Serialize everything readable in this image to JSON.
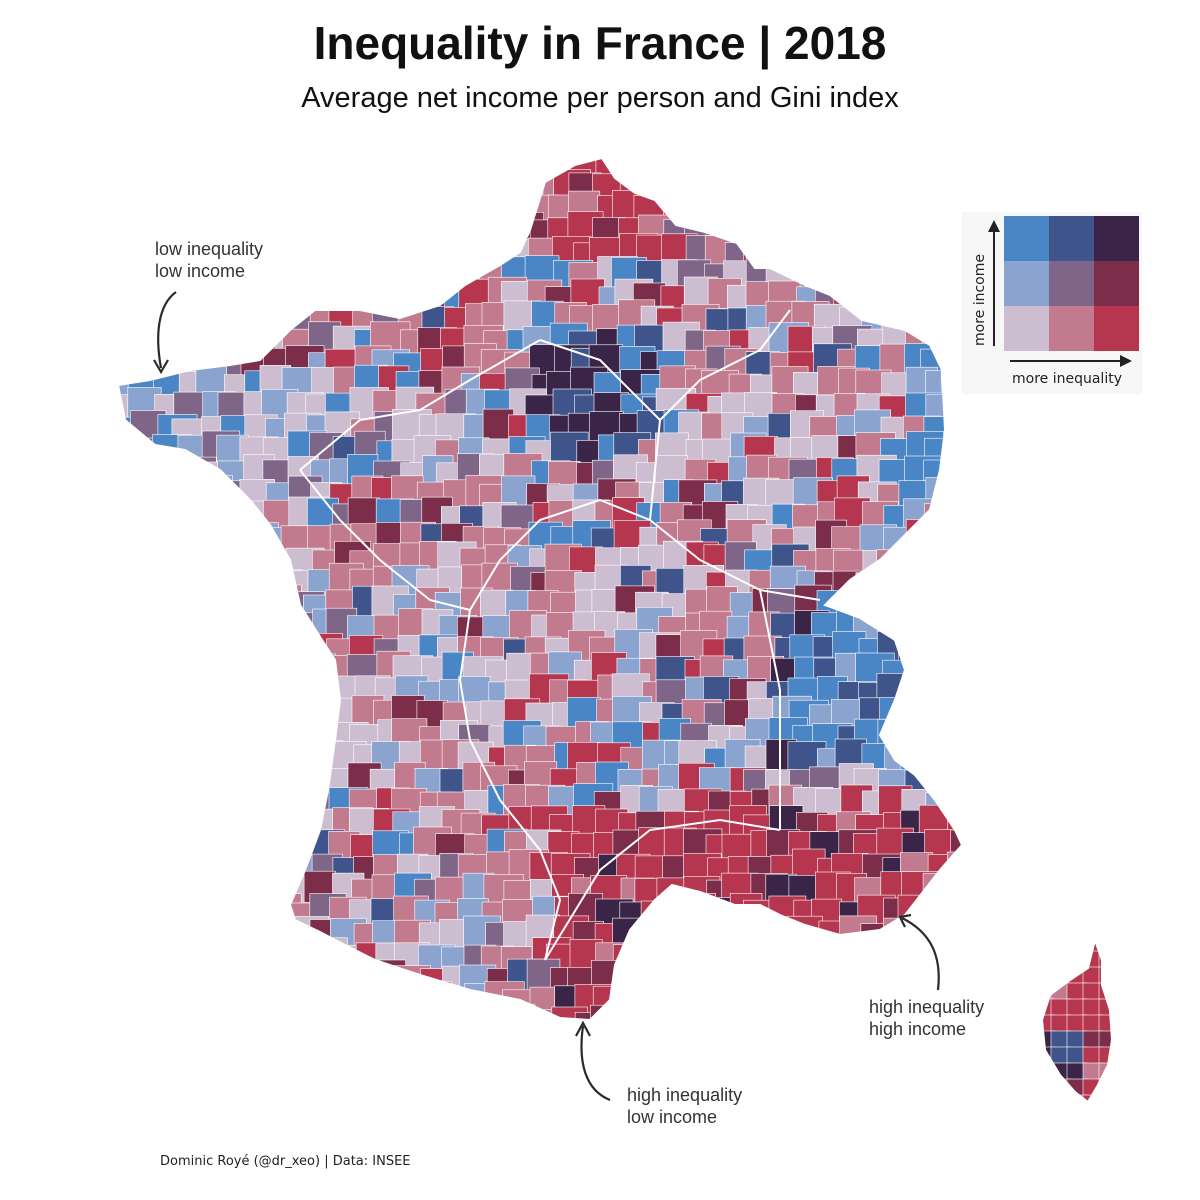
{
  "title": "Inequality in France | 2018",
  "subtitle": "Average net income per person and Gini index",
  "annotations": {
    "top_left": {
      "line1": "low inequality",
      "line2": "low income"
    },
    "bottom_right": {
      "line1": "high inequality",
      "line2": "high income"
    },
    "bottom_center": {
      "line1": "high inequality",
      "line2": "low income"
    }
  },
  "legend": {
    "x_label": "more inequality",
    "y_label": "more income",
    "grid_colors": [
      [
        "#4a86c6",
        "#3f548a",
        "#3a2548"
      ],
      [
        "#8aa3cf",
        "#7f6689",
        "#7c2d4a"
      ],
      [
        "#cdbdd1",
        "#c17a8e",
        "#b5364e"
      ]
    ]
  },
  "colors": {
    "low_ineq_low_income": "#cdbdd1",
    "mid_ineq_low_income": "#c17a8e",
    "high_ineq_low_income": "#b5364e",
    "low_ineq_mid_income": "#8aa3cf",
    "mid_ineq_mid_income": "#7f6689",
    "high_ineq_mid_income": "#7c2d4a",
    "low_ineq_high_income": "#4a86c6",
    "mid_ineq_high_income": "#3f548a",
    "high_ineq_high_income": "#3a2548",
    "boundary": "#ffffff"
  },
  "caption": "Dominic Royé (@dr_xeo) | Data: INSEE"
}
